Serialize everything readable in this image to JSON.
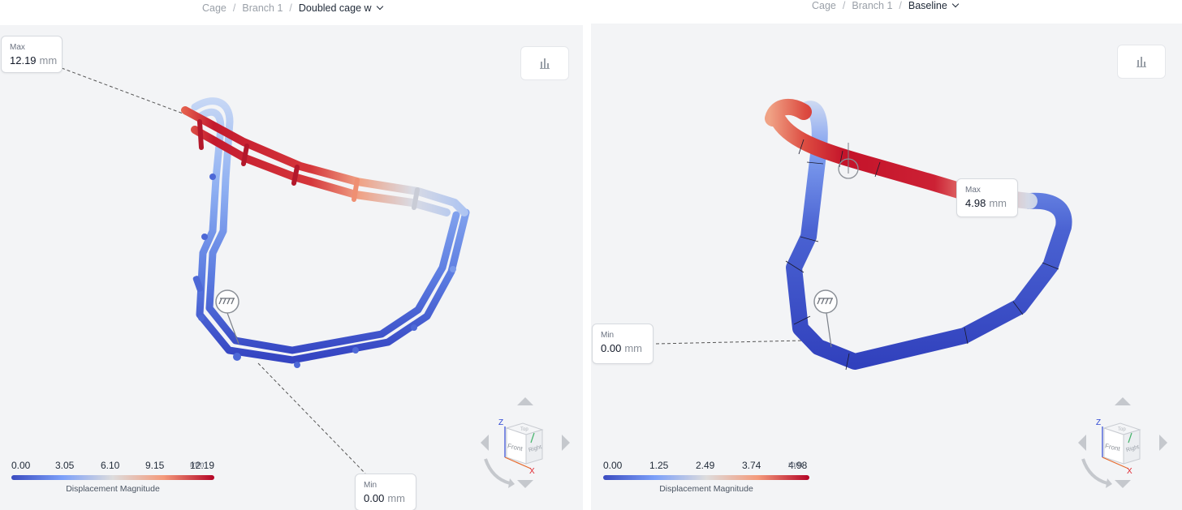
{
  "panels": [
    {
      "breadcrumb": {
        "items": [
          "Cage",
          "Branch 1"
        ],
        "current": "Doubled cage w"
      },
      "max": {
        "label": "Max",
        "value": "12.19",
        "unit": "mm"
      },
      "min": {
        "label": "Min",
        "value": "0.00",
        "unit": "mm"
      },
      "legend": {
        "ticks": [
          "0.00",
          "3.05",
          "6.10",
          "9.15",
          "12.19"
        ],
        "unit": "mm",
        "title": "Displacement Magnitude"
      },
      "navcube": {
        "front": "Front",
        "right": "Right",
        "top": "Top",
        "z": "Z",
        "x": "X"
      }
    },
    {
      "breadcrumb": {
        "items": [
          "Cage",
          "Branch 1"
        ],
        "current": "Baseline"
      },
      "max": {
        "label": "Max",
        "value": "4.98",
        "unit": "mm"
      },
      "min": {
        "label": "Min",
        "value": "0.00",
        "unit": "mm"
      },
      "legend": {
        "ticks": [
          "0.00",
          "1.25",
          "2.49",
          "3.74",
          "4.98"
        ],
        "unit": "mm",
        "title": "Displacement Magnitude"
      },
      "navcube": {
        "front": "Front",
        "right": "Right",
        "top": "Top",
        "z": "Z",
        "x": "X"
      }
    }
  ],
  "colors": {
    "cold": "#3b4cc0",
    "cool": "#7b9ff9",
    "neutral": "#dddcdc",
    "warm": "#f49a7b",
    "hot": "#b40426"
  },
  "icons": {
    "chart_button": "bar-chart-icon",
    "support_marker": "fixed-support-icon"
  }
}
